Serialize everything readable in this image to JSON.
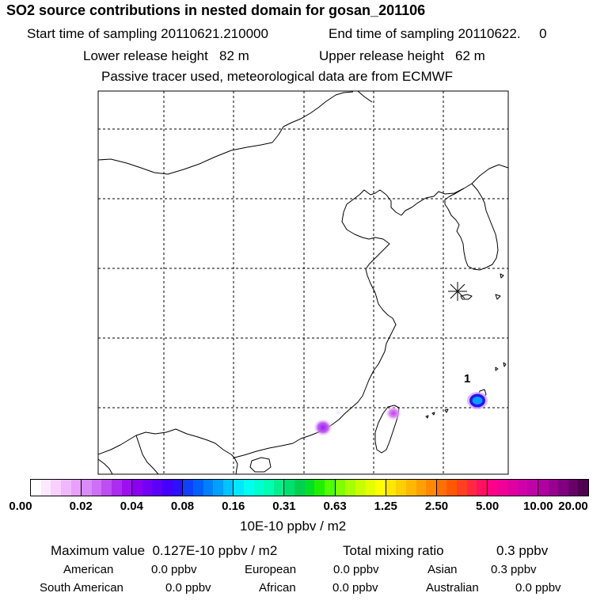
{
  "header": {
    "title": "SO2 source contributions in nested domain for gosan_201106",
    "start_sampling": "Start time of sampling 20110621.210000",
    "end_sampling": "End time of sampling 20110622.     0",
    "lower_release": "Lower release height   82 m",
    "upper_release": "Upper release height   62 m",
    "tracer_note": "Passive tracer used, meteorological data are from ECMWF"
  },
  "map": {
    "marker_label": "1",
    "coastline_color": "#000000",
    "grid_color": "#000000"
  },
  "colorbar": {
    "ticks": [
      "0.00",
      "0.02",
      "0.04",
      "0.08",
      "0.16",
      "0.31",
      "0.63",
      "1.25",
      "2.50",
      "5.00",
      "10.00",
      "20.00"
    ],
    "colors": [
      [
        "#ffffff",
        "#fde8ff",
        "#f8d0fe",
        "#f0b8fc",
        "#e8a0fa"
      ],
      [
        "#d98cf7",
        "#cc70f5",
        "#bc4ef2",
        "#ac2cef",
        "#9c10ed"
      ],
      [
        "#8a00ee",
        "#7400f4",
        "#5c00f8",
        "#4400fc",
        "#2c10ff"
      ],
      [
        "#1040ff",
        "#0060ff",
        "#0080ff",
        "#00a0ff",
        "#00c4ff"
      ],
      [
        "#00e8ff",
        "#00ffee",
        "#00ffd0",
        "#00ffb0",
        "#00f090"
      ],
      [
        "#00e070",
        "#00d050",
        "#00e028",
        "#20f000",
        "#50ff00"
      ],
      [
        "#80ff00",
        "#a8ff00",
        "#c8ff00",
        "#e4ff00",
        "#ffff00"
      ],
      [
        "#ffe800",
        "#ffd000",
        "#ffb800",
        "#ffa000",
        "#ff8800"
      ],
      [
        "#ff7000",
        "#ff5800",
        "#ff4020",
        "#ff2840",
        "#ff1060"
      ],
      [
        "#ff0088",
        "#f00098",
        "#e000a0",
        "#d000a8",
        "#c000a8"
      ],
      [
        "#b000a0",
        "#980090",
        "#800080",
        "#680068",
        "#500050"
      ]
    ],
    "units": "10E-10 ppbv / m2"
  },
  "summary": {
    "max_value": "Maximum value  0.127E-10 ppbv / m2",
    "total_label": "Total mixing ratio",
    "total_value": "0.3 ppbv",
    "regions": [
      {
        "name": "American",
        "value": "0.0 ppbv"
      },
      {
        "name": "European",
        "value": "0.0 ppbv"
      },
      {
        "name": "Asian",
        "value": "0.3 ppbv"
      },
      {
        "name": "South American",
        "value": "0.0 ppbv"
      },
      {
        "name": "African",
        "value": "0.0 ppbv"
      },
      {
        "name": "Australian",
        "value": "0.0 ppbv"
      }
    ]
  }
}
